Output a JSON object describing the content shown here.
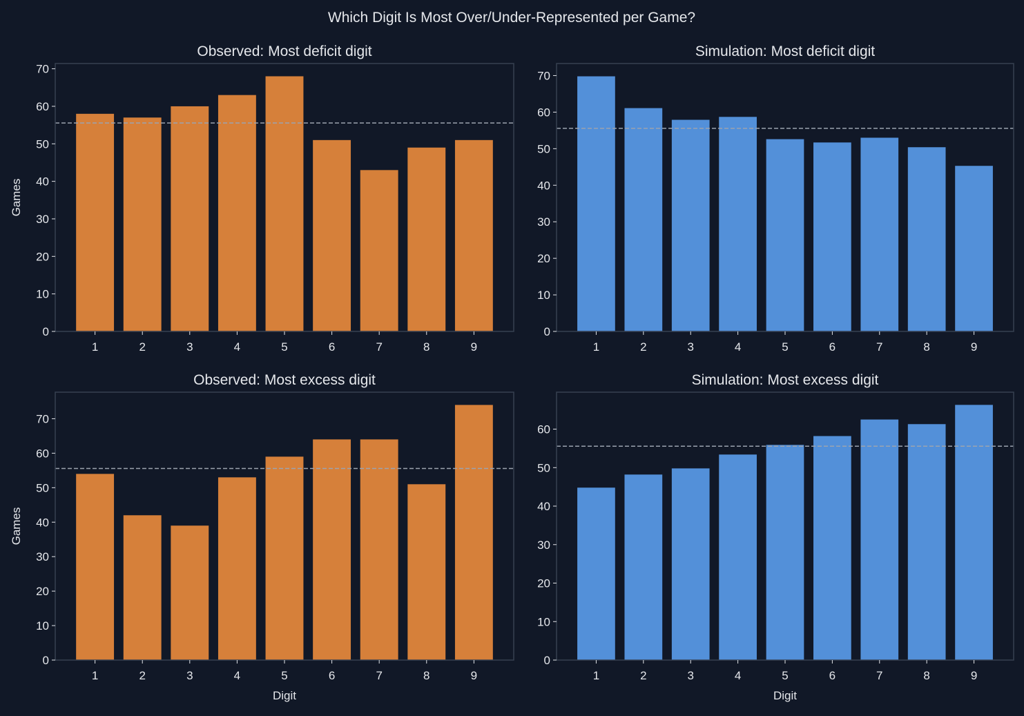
{
  "suptitle": "Which Digit Is Most Over/Under-Represented per Game?",
  "colors": {
    "background": "#111827",
    "observed": "#D6803A",
    "simulation": "#5390D9",
    "expected_line": "#9ca3af",
    "frame": "#374151",
    "text": "#e5e7eb"
  },
  "chart_data": [
    {
      "type": "bar",
      "title": "Observed: Most deficit digit",
      "xlabel": "",
      "ylabel": "Games",
      "categories": [
        "1",
        "2",
        "3",
        "4",
        "5",
        "6",
        "7",
        "8",
        "9"
      ],
      "values": [
        58,
        57,
        60,
        63,
        68,
        51,
        43,
        49,
        51
      ],
      "reference_line": 55.56,
      "ylim": [
        0,
        71.4
      ],
      "yticks": [
        0,
        10,
        20,
        30,
        40,
        50,
        60,
        70
      ],
      "color_key": "observed"
    },
    {
      "type": "bar",
      "title": "Simulation: Most deficit digit",
      "xlabel": "",
      "ylabel": "",
      "categories": [
        "1",
        "2",
        "3",
        "4",
        "5",
        "6",
        "7",
        "8",
        "9"
      ],
      "values": [
        69.8,
        61.1,
        57.9,
        58.7,
        52.6,
        51.7,
        53.0,
        50.4,
        45.3
      ],
      "reference_line": 55.56,
      "ylim": [
        0,
        73.3
      ],
      "yticks": [
        0,
        10,
        20,
        30,
        40,
        50,
        60,
        70
      ],
      "color_key": "simulation"
    },
    {
      "type": "bar",
      "title": "Observed: Most excess digit",
      "xlabel": "Digit",
      "ylabel": "Games",
      "categories": [
        "1",
        "2",
        "3",
        "4",
        "5",
        "6",
        "7",
        "8",
        "9"
      ],
      "values": [
        54,
        42,
        39,
        53,
        59,
        64,
        64,
        51,
        74
      ],
      "reference_line": 55.56,
      "ylim": [
        0,
        77.7
      ],
      "yticks": [
        0,
        10,
        20,
        30,
        40,
        50,
        60,
        70
      ],
      "color_key": "observed"
    },
    {
      "type": "bar",
      "title": "Simulation: Most excess digit",
      "xlabel": "Digit",
      "ylabel": "",
      "categories": [
        "1",
        "2",
        "3",
        "4",
        "5",
        "6",
        "7",
        "8",
        "9"
      ],
      "values": [
        44.8,
        48.2,
        49.8,
        53.4,
        55.9,
        58.2,
        62.5,
        61.3,
        66.3
      ],
      "reference_line": 55.56,
      "ylim": [
        0,
        69.6
      ],
      "yticks": [
        0,
        10,
        20,
        30,
        40,
        50,
        60
      ],
      "color_key": "simulation"
    }
  ]
}
